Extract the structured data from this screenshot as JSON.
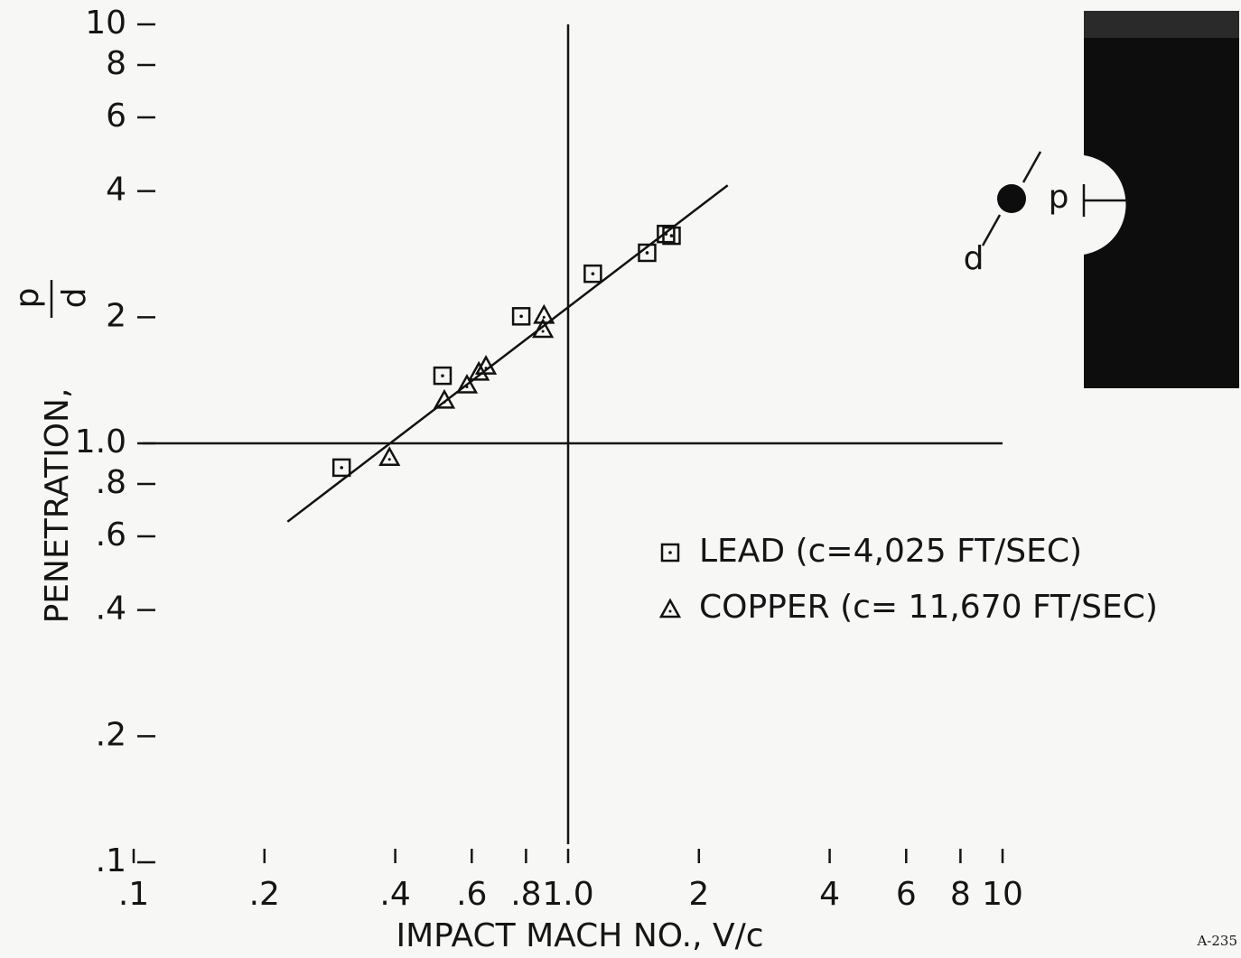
{
  "chart_data": {
    "type": "scatter",
    "x_label": "IMPACT MACH NO., V/c",
    "y_label": "PENETRATION,",
    "y_label_fraction": {
      "numerator": "p",
      "denominator": "d"
    },
    "log_x": true,
    "log_y": true,
    "xlim": [
      0.1,
      10
    ],
    "ylim": [
      0.1,
      10
    ],
    "xticks": [
      {
        "value": 0.1,
        "label": ".1"
      },
      {
        "value": 0.2,
        "label": ".2"
      },
      {
        "value": 0.4,
        "label": ".4"
      },
      {
        "value": 0.6,
        "label": ".6"
      },
      {
        "value": 0.8,
        "label": ".8"
      },
      {
        "value": 1,
        "label": "1.0"
      },
      2,
      4,
      6,
      8,
      10
    ],
    "yticks": [
      {
        "value": 0.1,
        "label": ".1"
      },
      {
        "value": 0.2,
        "label": ".2"
      },
      {
        "value": 0.4,
        "label": ".4"
      },
      {
        "value": 0.6,
        "label": ".6"
      },
      {
        "value": 0.8,
        "label": ".8"
      },
      {
        "value": 1,
        "label": "1.0"
      },
      2,
      4,
      6,
      8,
      10
    ],
    "reference_lines": {
      "x": 1,
      "y": 1
    },
    "series": [
      {
        "name": "LEAD (c=4,025 FT/SEC)",
        "marker": "square",
        "color": "#111111",
        "x": [
          0.301,
          0.514,
          0.78,
          1.14,
          1.52,
          1.68,
          1.73
        ],
        "values": [
          0.875,
          1.45,
          2.01,
          2.54,
          2.85,
          3.16,
          3.13
        ]
      },
      {
        "name": "COPPER (c= 11,670 FT/SEC)",
        "marker": "triangle",
        "color": "#111111",
        "x": [
          0.388,
          0.519,
          0.585,
          0.623,
          0.647,
          0.875,
          0.88
        ],
        "values": [
          0.92,
          1.26,
          1.37,
          1.47,
          1.52,
          1.86,
          2.01
        ]
      }
    ],
    "fit_line": {
      "x": [
        0.226,
        2.33
      ],
      "y": [
        0.65,
        4.13
      ],
      "color": "#111111"
    }
  },
  "diagram": {
    "penetration_label": "p",
    "diameter_label": "d"
  },
  "figure_id": "A-235"
}
